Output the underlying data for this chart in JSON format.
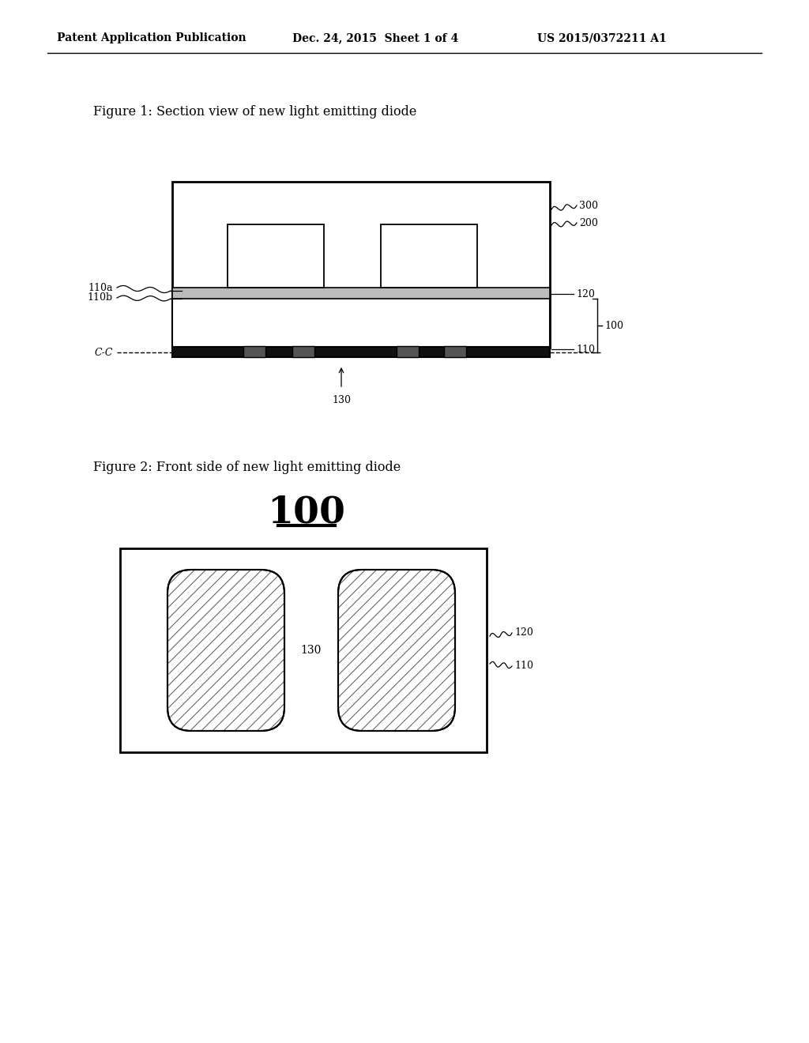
{
  "bg_color": "#ffffff",
  "header_left": "Patent Application Publication",
  "header_center": "Dec. 24, 2015  Sheet 1 of 4",
  "header_right": "US 2015/0372211 A1",
  "fig1_title": "Figure 1: Section view of new light emitting diode",
  "fig2_title": "Figure 2: Front side of new light emitting diode",
  "fig2_label": "100"
}
